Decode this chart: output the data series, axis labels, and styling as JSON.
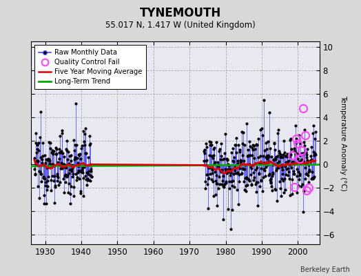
{
  "title": "TYNEMOUTH",
  "subtitle": "55.017 N, 1.417 W (United Kingdom)",
  "ylabel": "Temperature Anomaly (°C)",
  "credit": "Berkeley Earth",
  "xlim": [
    1926,
    2006
  ],
  "ylim": [
    -6.8,
    10.5
  ],
  "yticks": [
    -6,
    -4,
    -2,
    0,
    2,
    4,
    6,
    8,
    10
  ],
  "xticks": [
    1930,
    1940,
    1950,
    1960,
    1970,
    1980,
    1990,
    2000
  ],
  "background_color": "#d8d8d8",
  "plot_bg_color": "#e8e8f0",
  "stem_color": "#4444ff",
  "dot_color": "#000000",
  "ma_color": "#dd0000",
  "trend_color": "#00aa00",
  "qc_color": "#ff44ff",
  "seed": 12345,
  "data_start": 1927,
  "data_end": 2004,
  "gap_start": 1943,
  "gap_end": 1974,
  "qc_fail_years": [
    2001.5,
    2002.0,
    1999.5,
    2000.0,
    2001.0,
    2003.0,
    1998.5,
    2002.5,
    1999.0,
    2000.5
  ],
  "qc_fail_values": [
    4.8,
    2.5,
    2.2,
    1.8,
    1.2,
    -2.0,
    0.8,
    -2.2,
    -1.9,
    0.5
  ]
}
